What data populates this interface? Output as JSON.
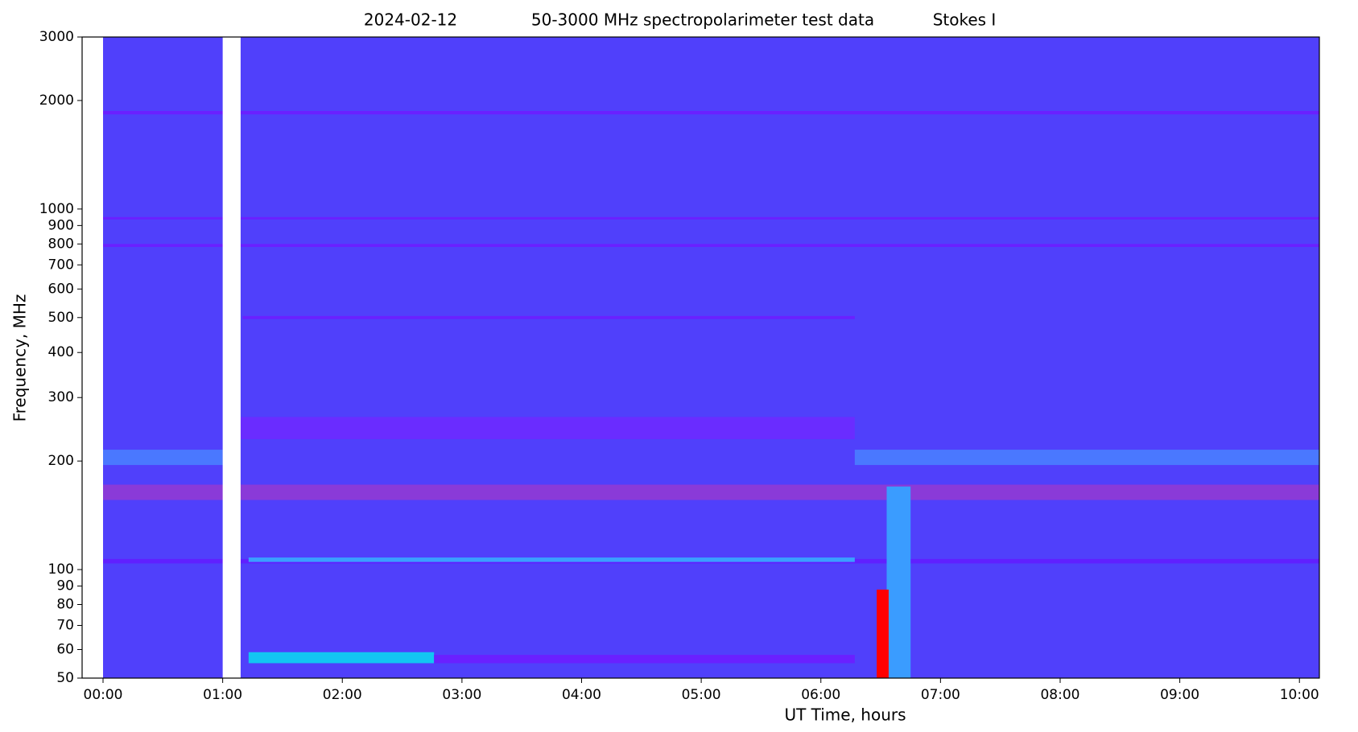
{
  "chart_data": {
    "type": "spectrogram",
    "title": [
      "2024-02-12",
      "50-3000 MHz spectropolarimeter test data",
      "Stokes I"
    ],
    "xlabel": "UT Time, hours",
    "ylabel": "Frequency, MHz",
    "background": "#5040fb",
    "gap_color": "#ffffff",
    "xlim": [
      -10.5,
      610
    ],
    "ylim": [
      50,
      3000
    ],
    "log_y": true,
    "xticks": [
      {
        "value": 0,
        "label": "00:00"
      },
      {
        "value": 60,
        "label": "01:00"
      },
      {
        "value": 120,
        "label": "02:00"
      },
      {
        "value": 180,
        "label": "03:00"
      },
      {
        "value": 240,
        "label": "04:00"
      },
      {
        "value": 300,
        "label": "05:00"
      },
      {
        "value": 360,
        "label": "06:00"
      },
      {
        "value": 420,
        "label": "07:00"
      },
      {
        "value": 480,
        "label": "08:00"
      },
      {
        "value": 540,
        "label": "09:00"
      },
      {
        "value": 600,
        "label": "10:00"
      }
    ],
    "yticks": [
      50,
      60,
      70,
      80,
      90,
      100,
      200,
      300,
      400,
      500,
      600,
      700,
      800,
      900,
      1000,
      2000,
      3000
    ],
    "gaps": [
      [
        -10.5,
        0
      ],
      [
        60,
        69
      ]
    ],
    "features": [
      {
        "t": [
          0,
          610
        ],
        "f": [
          156,
          172
        ],
        "color": "#8a3ad8"
      },
      {
        "t": [
          0,
          60
        ],
        "f": [
          195,
          215
        ],
        "color": "#4a78ff"
      },
      {
        "t": [
          377,
          610
        ],
        "f": [
          195,
          215
        ],
        "color": "#4a78ff"
      },
      {
        "t": [
          69,
          377
        ],
        "f": [
          230,
          265
        ],
        "color": "#6a2cff"
      },
      {
        "t": [
          0,
          610
        ],
        "f": [
          104,
          107
        ],
        "color": "#6020ff"
      },
      {
        "t": [
          73,
          377
        ],
        "f": [
          105,
          108
        ],
        "color": "#3aa0ff"
      },
      {
        "t": [
          73,
          166
        ],
        "f": [
          55,
          59
        ],
        "color": "#12c6f2"
      },
      {
        "t": [
          166,
          377
        ],
        "f": [
          55,
          58
        ],
        "color": "#6a20ff"
      },
      {
        "t": [
          0,
          610
        ],
        "f": [
          1830,
          1870
        ],
        "color": "#6a20ff"
      },
      {
        "t": [
          0,
          610
        ],
        "f": [
          935,
          950
        ],
        "color": "#6a20ff"
      },
      {
        "t": [
          0,
          610
        ],
        "f": [
          785,
          800
        ],
        "color": "#6a20ff"
      },
      {
        "t": [
          70,
          377
        ],
        "f": [
          495,
          505
        ],
        "color": "#6a20ff"
      },
      {
        "t": [
          393,
          405
        ],
        "f": [
          50,
          170
        ],
        "color": "#3a9cff"
      },
      {
        "t": [
          388,
          394
        ],
        "f": [
          50,
          88
        ],
        "color": "#ff0000"
      }
    ]
  }
}
